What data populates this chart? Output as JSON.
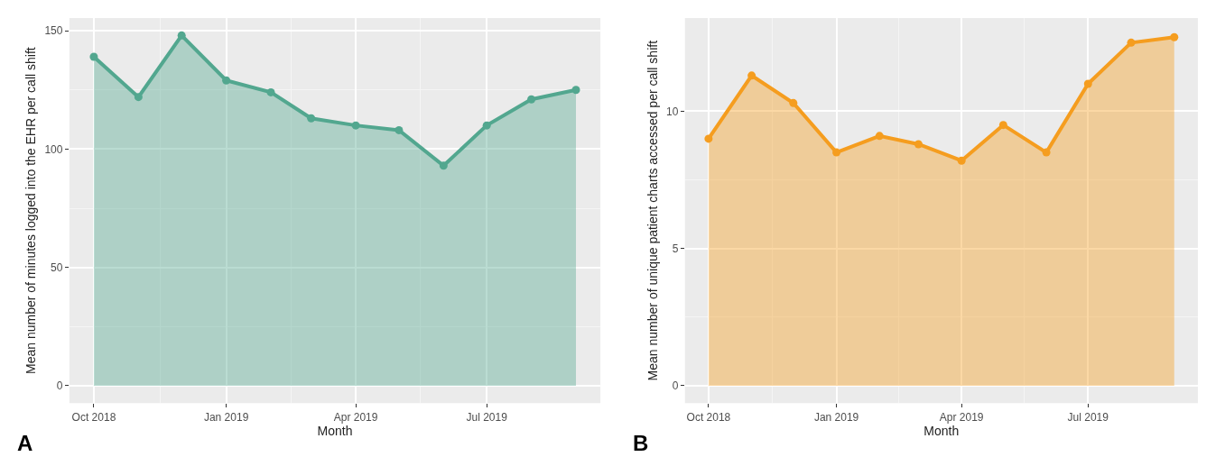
{
  "chart_data": [
    {
      "type": "area",
      "xlabel": "Month",
      "ylabel": "Mean number of minutes logged into the EHR per call shift",
      "annotations": [
        "A"
      ],
      "x": [
        "2018-10-01",
        "2018-11-01",
        "2018-12-01",
        "2019-01-01",
        "2019-02-01",
        "2019-03-01",
        "2019-04-01",
        "2019-05-01",
        "2019-06-01",
        "2019-07-01",
        "2019-08-01",
        "2019-09-01"
      ],
      "series": [
        {
          "color": "#52a78f",
          "values": [
            139,
            122,
            148,
            129,
            124,
            113,
            110,
            108,
            93,
            110,
            121,
            125
          ]
        }
      ],
      "xlim": [
        "2018-09-14",
        "2019-09-18"
      ],
      "xticks": [
        {
          "value": "2018-10-01",
          "label": "Oct 2018"
        },
        {
          "value": "2019-01-01",
          "label": "Jan 2019"
        },
        {
          "value": "2019-04-01",
          "label": "Apr 2019"
        },
        {
          "value": "2019-07-01",
          "label": "Jul 2019"
        }
      ],
      "ylim": [
        -7.4,
        155.4
      ],
      "yticks": [
        0,
        50,
        100,
        150
      ],
      "grid": true,
      "marker": "circle",
      "line_style": "solid"
    },
    {
      "type": "area",
      "xlabel": "Month",
      "ylabel": "Mean number of unique patient charts accessed per call shift",
      "annotations": [
        "B"
      ],
      "x": [
        "2018-10-01",
        "2018-11-01",
        "2018-12-01",
        "2019-01-01",
        "2019-02-01",
        "2019-03-01",
        "2019-04-01",
        "2019-05-01",
        "2019-06-01",
        "2019-07-01",
        "2019-08-01",
        "2019-09-01"
      ],
      "series": [
        {
          "color": "#f59d1f",
          "values": [
            9.0,
            11.3,
            10.3,
            8.5,
            9.1,
            8.8,
            8.2,
            9.5,
            8.5,
            11.0,
            12.5,
            12.7
          ]
        }
      ],
      "xlim": [
        "2018-09-14",
        "2019-09-18"
      ],
      "xticks": [
        {
          "value": "2018-10-01",
          "label": "Oct 2018"
        },
        {
          "value": "2019-01-01",
          "label": "Jan 2019"
        },
        {
          "value": "2019-04-01",
          "label": "Apr 2019"
        },
        {
          "value": "2019-07-01",
          "label": "Jul 2019"
        }
      ],
      "ylim": [
        -0.64,
        13.4
      ],
      "yticks": [
        0,
        5,
        10
      ],
      "grid": true,
      "marker": "circle",
      "line_style": "solid"
    }
  ]
}
